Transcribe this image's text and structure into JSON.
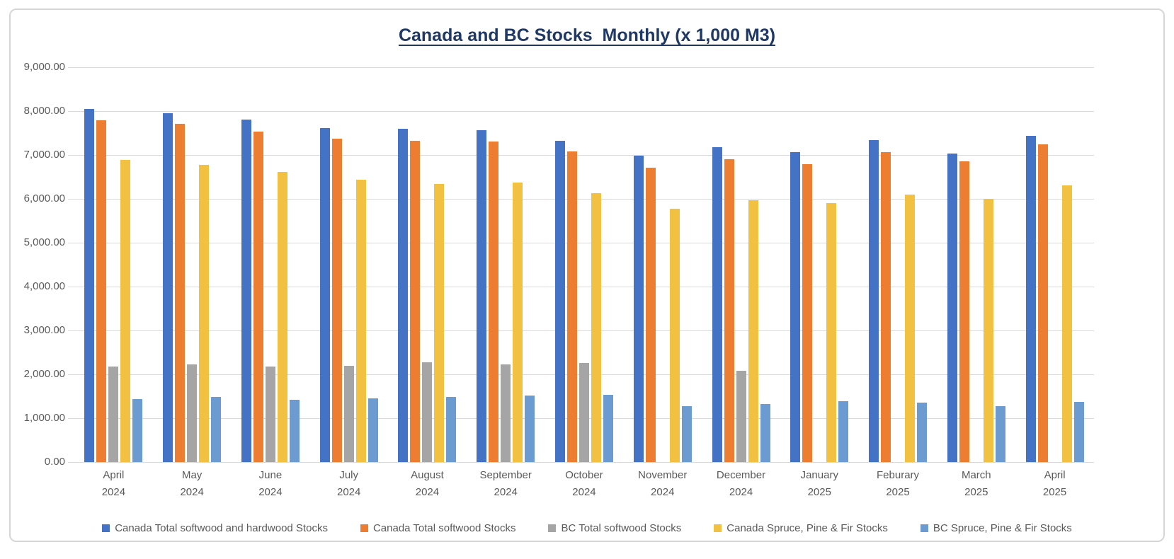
{
  "page": {
    "background": "#ffffff",
    "frame_border_color": "#d6d6d6"
  },
  "chart_data": {
    "type": "bar",
    "title": "Canada and BC Stocks  Monthly (x 1,000 M3)",
    "title_color": "#1F3864",
    "xlabel": "",
    "ylabel": "",
    "ylim": [
      0,
      9000
    ],
    "y_tick_step": 1000,
    "y_ticks": [
      "0.00",
      "1,000.00",
      "2,000.00",
      "3,000.00",
      "4,000.00",
      "5,000.00",
      "6,000.00",
      "7,000.00",
      "8,000.00",
      "9,000.00"
    ],
    "grid": true,
    "gridline_color": "#d9d9d9",
    "axis_text_color": "#595959",
    "legend_position": "bottom",
    "categories": [
      [
        "April",
        "2024"
      ],
      [
        "May",
        "2024"
      ],
      [
        "June",
        "2024"
      ],
      [
        "July",
        "2024"
      ],
      [
        "August",
        "2024"
      ],
      [
        "September",
        "2024"
      ],
      [
        "October",
        "2024"
      ],
      [
        "November",
        "2024"
      ],
      [
        "December",
        "2024"
      ],
      [
        "January",
        "2025"
      ],
      [
        "Feburary",
        "2025"
      ],
      [
        "March",
        "2025"
      ],
      [
        "April",
        "2025"
      ]
    ],
    "series": [
      {
        "name": "Canada Total softwood and hardwood Stocks",
        "color": "#4472C4",
        "values": [
          8050,
          7950,
          7800,
          7620,
          7590,
          7560,
          7330,
          6980,
          7170,
          7070,
          7340,
          7040,
          7430
        ]
      },
      {
        "name": "Canada Total softwood Stocks",
        "color": "#ED7D31",
        "values": [
          7790,
          7710,
          7540,
          7370,
          7330,
          7300,
          7080,
          6710,
          6900,
          6790,
          7060,
          6860,
          7250
        ]
      },
      {
        "name": "BC Total softwood Stocks",
        "color": "#A5A5A5",
        "values": [
          2170,
          2230,
          2170,
          2200,
          2270,
          2230,
          2260,
          null,
          2080,
          null,
          null,
          null,
          null
        ]
      },
      {
        "name": "Canada Spruce, Pine & Fir Stocks",
        "color": "#F2C142",
        "values": [
          6890,
          6780,
          6610,
          6430,
          6340,
          6370,
          6130,
          5780,
          5960,
          5910,
          6100,
          6000,
          6310
        ]
      },
      {
        "name": "BC Spruce, Pine & Fir Stocks",
        "color": "#6C9BD2",
        "values": [
          1440,
          1480,
          1420,
          1450,
          1480,
          1520,
          1530,
          1280,
          1320,
          1380,
          1360,
          1280,
          1370
        ]
      }
    ]
  }
}
